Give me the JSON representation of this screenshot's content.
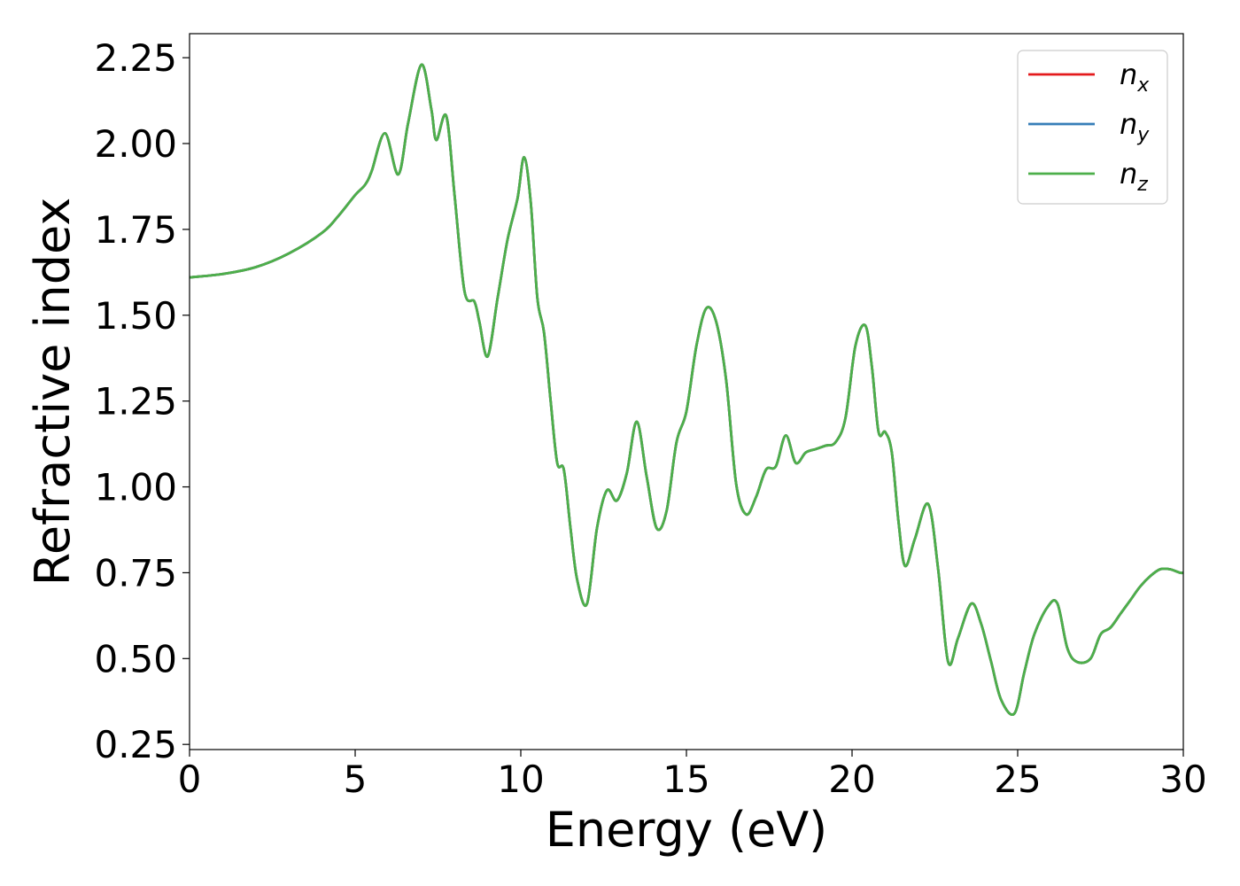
{
  "chart_data": {
    "type": "line",
    "title": "",
    "xlabel": "Energy (eV)",
    "ylabel": "Refractive index",
    "xlim": [
      0,
      30
    ],
    "ylim": [
      0.235,
      2.32
    ],
    "xticks": [
      0,
      5,
      10,
      15,
      20,
      25,
      30
    ],
    "xtick_labels": [
      "0",
      "5",
      "10",
      "15",
      "20",
      "25",
      "30"
    ],
    "yticks": [
      0.25,
      0.5,
      0.75,
      1.0,
      1.25,
      1.5,
      1.75,
      2.0,
      2.25
    ],
    "ytick_labels": [
      "0.25",
      "0.50",
      "0.75",
      "1.00",
      "1.25",
      "1.50",
      "1.75",
      "2.00",
      "2.25"
    ],
    "grid": false,
    "legend_position": "top-right",
    "series": [
      {
        "name": "n",
        "subscript": "x",
        "color": "#e41a1c"
      },
      {
        "name": "n",
        "subscript": "y",
        "color": "#377eb8"
      },
      {
        "name": "n",
        "subscript": "z",
        "color": "#4daf4a"
      }
    ],
    "x": [
      0,
      1,
      2,
      3,
      4,
      4.5,
      5,
      5.3,
      5.5,
      5.9,
      6.3,
      6.6,
      7.0,
      7.3,
      7.45,
      7.75,
      8.0,
      8.3,
      8.6,
      8.75,
      9.0,
      9.3,
      9.6,
      9.9,
      10.1,
      10.3,
      10.5,
      10.7,
      10.9,
      11.1,
      11.3,
      11.5,
      11.7,
      12.0,
      12.3,
      12.6,
      12.9,
      13.2,
      13.5,
      13.8,
      14.1,
      14.4,
      14.7,
      15.0,
      15.3,
      15.6,
      15.9,
      16.2,
      16.5,
      16.8,
      17.1,
      17.4,
      17.7,
      18.0,
      18.3,
      18.6,
      18.9,
      19.2,
      19.5,
      19.8,
      20.1,
      20.4,
      20.6,
      20.8,
      21.0,
      21.2,
      21.4,
      21.6,
      21.9,
      22.3,
      22.6,
      22.9,
      23.2,
      23.6,
      23.9,
      24.2,
      24.5,
      24.9,
      25.2,
      25.5,
      25.9,
      26.2,
      26.5,
      26.8,
      27.2,
      27.5,
      27.8,
      28.1,
      28.4,
      28.7,
      29.0,
      29.3,
      29.6,
      29.9,
      30.0
    ],
    "y": [
      1.61,
      1.62,
      1.64,
      1.68,
      1.74,
      1.79,
      1.85,
      1.88,
      1.92,
      2.03,
      1.91,
      2.06,
      2.23,
      2.1,
      2.01,
      2.08,
      1.85,
      1.57,
      1.54,
      1.48,
      1.38,
      1.55,
      1.72,
      1.84,
      1.96,
      1.83,
      1.55,
      1.45,
      1.25,
      1.07,
      1.05,
      0.88,
      0.73,
      0.66,
      0.88,
      0.99,
      0.96,
      1.04,
      1.19,
      1.03,
      0.88,
      0.93,
      1.13,
      1.22,
      1.41,
      1.52,
      1.48,
      1.31,
      1.01,
      0.92,
      0.97,
      1.05,
      1.06,
      1.15,
      1.07,
      1.1,
      1.11,
      1.12,
      1.13,
      1.2,
      1.41,
      1.47,
      1.35,
      1.16,
      1.16,
      1.1,
      0.9,
      0.77,
      0.85,
      0.95,
      0.76,
      0.49,
      0.56,
      0.66,
      0.6,
      0.49,
      0.38,
      0.34,
      0.46,
      0.57,
      0.65,
      0.66,
      0.53,
      0.49,
      0.5,
      0.57,
      0.59,
      0.63,
      0.67,
      0.71,
      0.74,
      0.76,
      0.76,
      0.75,
      0.75
    ]
  }
}
